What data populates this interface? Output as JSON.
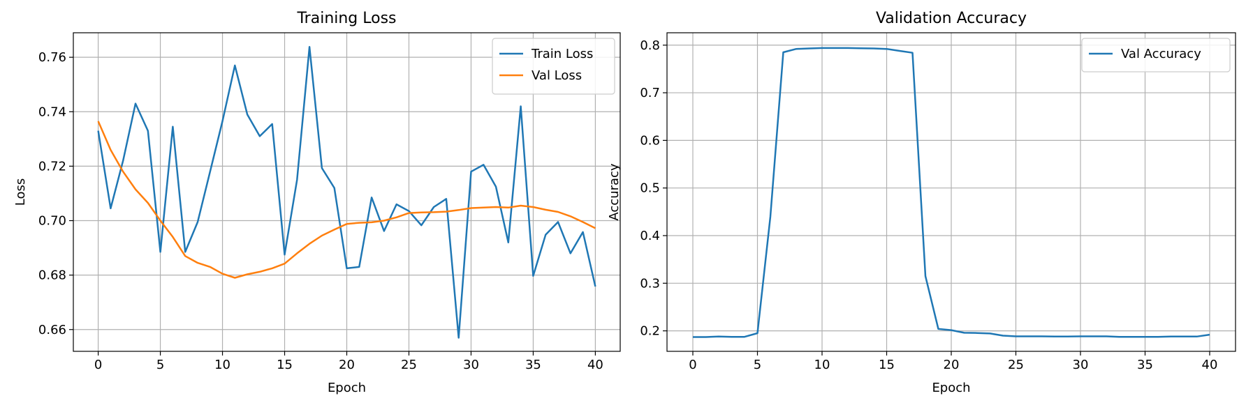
{
  "colors": {
    "train": "#1f77b4",
    "val": "#ff7f0e",
    "grid": "#b0b0b0",
    "axis": "#000000"
  },
  "chart_data": [
    {
      "type": "line",
      "title": "Training Loss",
      "xlabel": "Epoch",
      "ylabel": "Loss",
      "xlim": [
        -2,
        42
      ],
      "ylim": [
        0.652,
        0.769
      ],
      "xticks": [
        0,
        5,
        10,
        15,
        20,
        25,
        30,
        35,
        40
      ],
      "yticks": [
        0.66,
        0.68,
        0.7,
        0.72,
        0.74,
        0.76
      ],
      "ytick_labels": [
        "0.66",
        "0.68",
        "0.70",
        "0.72",
        "0.74",
        "0.76"
      ],
      "grid": true,
      "legend": "upper-right",
      "x": [
        0,
        1,
        2,
        3,
        4,
        5,
        6,
        7,
        8,
        9,
        10,
        11,
        12,
        13,
        14,
        15,
        16,
        17,
        18,
        19,
        20,
        21,
        22,
        23,
        24,
        25,
        26,
        27,
        28,
        29,
        30,
        31,
        32,
        33,
        34,
        35,
        36,
        37,
        38,
        39,
        40
      ],
      "series": [
        {
          "name": "Train Loss",
          "color": "#1f77b4",
          "values": [
            0.733,
            0.7045,
            0.722,
            0.743,
            0.733,
            0.6885,
            0.7345,
            0.6885,
            0.6995,
            0.718,
            0.7365,
            0.757,
            0.739,
            0.731,
            0.7355,
            0.6875,
            0.715,
            0.7638,
            0.7193,
            0.712,
            0.6825,
            0.683,
            0.7085,
            0.6962,
            0.706,
            0.7035,
            0.6983,
            0.705,
            0.708,
            0.657,
            0.718,
            0.7205,
            0.7125,
            0.692,
            0.742,
            0.6797,
            0.6948,
            0.6995,
            0.688,
            0.6958,
            0.6758
          ]
        },
        {
          "name": "Val Loss",
          "color": "#ff7f0e",
          "values": [
            0.7365,
            0.726,
            0.718,
            0.7115,
            0.7065,
            0.7,
            0.694,
            0.687,
            0.6845,
            0.683,
            0.6805,
            0.679,
            0.6803,
            0.6812,
            0.6825,
            0.6842,
            0.688,
            0.6915,
            0.6945,
            0.6967,
            0.6988,
            0.6992,
            0.6994,
            0.7,
            0.7012,
            0.7028,
            0.703,
            0.7031,
            0.7033,
            0.7039,
            0.7046,
            0.7048,
            0.705,
            0.7048,
            0.7055,
            0.705,
            0.704,
            0.7032,
            0.7016,
            0.6995,
            0.6972
          ]
        }
      ]
    },
    {
      "type": "line",
      "title": "Validation Accuracy",
      "xlabel": "Epoch",
      "ylabel": "Accuracy",
      "xlim": [
        -2,
        42
      ],
      "ylim": [
        0.157,
        0.826
      ],
      "xticks": [
        0,
        5,
        10,
        15,
        20,
        25,
        30,
        35,
        40
      ],
      "yticks": [
        0.2,
        0.3,
        0.4,
        0.5,
        0.6,
        0.7,
        0.8
      ],
      "ytick_labels": [
        "0.2",
        "0.3",
        "0.4",
        "0.5",
        "0.6",
        "0.7",
        "0.8"
      ],
      "grid": true,
      "legend": "upper-right",
      "x": [
        0,
        1,
        2,
        3,
        4,
        5,
        6,
        7,
        8,
        9,
        10,
        11,
        12,
        13,
        14,
        15,
        16,
        17,
        18,
        19,
        20,
        21,
        22,
        23,
        24,
        25,
        26,
        27,
        28,
        29,
        30,
        31,
        32,
        33,
        34,
        35,
        36,
        37,
        38,
        39,
        40
      ],
      "series": [
        {
          "name": "Val Accuracy",
          "color": "#1f77b4",
          "values": [
            0.187,
            0.187,
            0.188,
            0.1875,
            0.1875,
            0.195,
            0.44,
            0.785,
            0.792,
            0.793,
            0.794,
            0.794,
            0.794,
            0.7935,
            0.793,
            0.792,
            0.788,
            0.784,
            0.315,
            0.204,
            0.2015,
            0.196,
            0.1955,
            0.1945,
            0.19,
            0.1885,
            0.1885,
            0.1885,
            0.188,
            0.188,
            0.1885,
            0.1885,
            0.1885,
            0.1875,
            0.1875,
            0.1875,
            0.1875,
            0.188,
            0.188,
            0.188,
            0.192
          ]
        }
      ]
    }
  ]
}
